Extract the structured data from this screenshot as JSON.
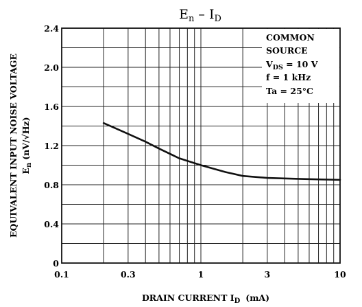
{
  "chart_data": {
    "type": "line",
    "title": {
      "main": "E",
      "main_sub": "n",
      "sep": " – ",
      "rhs": "I",
      "rhs_sub": "D"
    },
    "xlabel": {
      "text": "DRAIN CURRENT  ",
      "symbol": "I",
      "symbol_sub": "D",
      "unit": "(mA)"
    },
    "ylabel": {
      "line1": "EQUIVALENT INPUT NOISE VOLTAGE",
      "line2_symbol": "E",
      "line2_symbol_sub": "n",
      "line2_unit": "(nV/√Hz)"
    },
    "x_scale": "log",
    "xlim": [
      0.1,
      10
    ],
    "ylim": [
      0,
      2.4
    ],
    "x_tick_labels": [
      "0.1",
      "0.3",
      "1",
      "3",
      "10"
    ],
    "y_tick_labels": [
      "0",
      "0.4",
      "0.8",
      "1.2",
      "1.6",
      "2.0",
      "2.4"
    ],
    "grid": true,
    "annotation": {
      "line1": "COMMON",
      "line2": "SOURCE",
      "line3_a": "V",
      "line3_sub": "DS",
      "line3_b": " = 10 V",
      "line4": "f = 1 kHz",
      "line5": "Ta = 25°C"
    },
    "series": [
      {
        "x": [
          0.2,
          0.25,
          0.3,
          0.4,
          0.5,
          0.7,
          1.0,
          1.5,
          2.0,
          3.0,
          5.0,
          7.0,
          10.0
        ],
        "y": [
          1.43,
          1.37,
          1.32,
          1.24,
          1.17,
          1.07,
          1.0,
          0.93,
          0.89,
          0.87,
          0.86,
          0.855,
          0.85
        ]
      }
    ]
  }
}
